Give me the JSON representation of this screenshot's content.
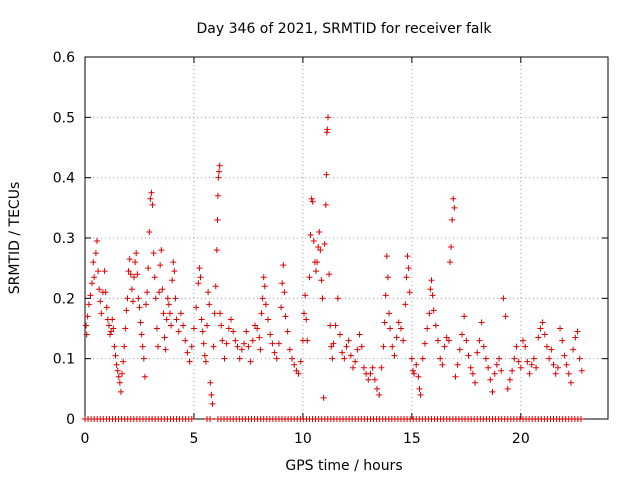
{
  "chart_data": {
    "type": "scatter",
    "title": "Day 346 of 2021, SRMTID for receiver falk",
    "xlabel": "GPS time / hours",
    "ylabel": "SRMTID / TECUs",
    "xlim": [
      0,
      24
    ],
    "ylim": [
      0,
      0.6
    ],
    "xticks": [
      0,
      5,
      10,
      15,
      20
    ],
    "xtick_labels": [
      "0",
      "5",
      "10",
      "15",
      "20"
    ],
    "yticks": [
      0,
      0.1,
      0.2,
      0.3,
      0.4,
      0.5,
      0.6
    ],
    "ytick_labels": [
      "0",
      "0.1",
      "0.2",
      "0.3",
      "0.4",
      "0.5",
      "0.6"
    ],
    "grid": true,
    "marker": "plus",
    "series": [
      {
        "name": "SRMTID",
        "color": "#dd0000",
        "points": [
          [
            0.05,
            0.155
          ],
          [
            0.08,
            0.14
          ],
          [
            0.12,
            0.17
          ],
          [
            0.18,
            0.19
          ],
          [
            0.25,
            0.205
          ],
          [
            0.32,
            0.225
          ],
          [
            0.38,
            0.26
          ],
          [
            0.42,
            0.235
          ],
          [
            0.5,
            0.275
          ],
          [
            0.55,
            0.295
          ],
          [
            0.6,
            0.245
          ],
          [
            0.65,
            0.215
          ],
          [
            0.7,
            0.195
          ],
          [
            0.75,
            0.175
          ],
          [
            0.82,
            0.21
          ],
          [
            0.9,
            0.245
          ],
          [
            0.95,
            0.21
          ],
          [
            1.0,
            0.185
          ],
          [
            1.05,
            0.165
          ],
          [
            1.1,
            0.155
          ],
          [
            1.15,
            0.14
          ],
          [
            1.2,
            0.145
          ],
          [
            1.25,
            0.165
          ],
          [
            1.3,
            0.15
          ],
          [
            1.35,
            0.12
          ],
          [
            1.4,
            0.105
          ],
          [
            1.45,
            0.09
          ],
          [
            1.5,
            0.08
          ],
          [
            1.55,
            0.07
          ],
          [
            1.6,
            0.06
          ],
          [
            1.65,
            0.045
          ],
          [
            1.7,
            0.075
          ],
          [
            1.75,
            0.095
          ],
          [
            1.8,
            0.12
          ],
          [
            1.85,
            0.15
          ],
          [
            1.9,
            0.18
          ],
          [
            1.95,
            0.2
          ],
          [
            2.0,
            0.245
          ],
          [
            2.05,
            0.265
          ],
          [
            2.1,
            0.24
          ],
          [
            2.15,
            0.215
          ],
          [
            2.2,
            0.195
          ],
          [
            2.25,
            0.235
          ],
          [
            2.3,
            0.26
          ],
          [
            2.35,
            0.275
          ],
          [
            2.4,
            0.24
          ],
          [
            2.45,
            0.2
          ],
          [
            2.5,
            0.185
          ],
          [
            2.55,
            0.16
          ],
          [
            2.6,
            0.14
          ],
          [
            2.65,
            0.12
          ],
          [
            2.7,
            0.1
          ],
          [
            2.75,
            0.07
          ],
          [
            2.8,
            0.19
          ],
          [
            2.85,
            0.21
          ],
          [
            2.9,
            0.25
          ],
          [
            2.95,
            0.31
          ],
          [
            3.0,
            0.365
          ],
          [
            3.05,
            0.375
          ],
          [
            3.1,
            0.355
          ],
          [
            3.15,
            0.275
          ],
          [
            3.2,
            0.235
          ],
          [
            3.25,
            0.2
          ],
          [
            3.3,
            0.15
          ],
          [
            3.35,
            0.12
          ],
          [
            3.4,
            0.21
          ],
          [
            3.45,
            0.255
          ],
          [
            3.5,
            0.28
          ],
          [
            3.55,
            0.215
          ],
          [
            3.6,
            0.175
          ],
          [
            3.65,
            0.135
          ],
          [
            3.7,
            0.115
          ],
          [
            3.75,
            0.165
          ],
          [
            3.8,
            0.2
          ],
          [
            3.85,
            0.19
          ],
          [
            3.9,
            0.175
          ],
          [
            3.95,
            0.155
          ],
          [
            4.0,
            0.23
          ],
          [
            4.05,
            0.26
          ],
          [
            4.1,
            0.245
          ],
          [
            4.15,
            0.2
          ],
          [
            4.2,
            0.165
          ],
          [
            4.3,
            0.145
          ],
          [
            4.4,
            0.175
          ],
          [
            4.5,
            0.155
          ],
          [
            4.6,
            0.13
          ],
          [
            4.7,
            0.11
          ],
          [
            4.8,
            0.095
          ],
          [
            4.9,
            0.12
          ],
          [
            5.0,
            0.15
          ],
          [
            5.1,
            0.185
          ],
          [
            5.2,
            0.225
          ],
          [
            5.25,
            0.25
          ],
          [
            5.3,
            0.235
          ],
          [
            5.35,
            0.165
          ],
          [
            5.4,
            0.145
          ],
          [
            5.45,
            0.125
          ],
          [
            5.5,
            0.105
          ],
          [
            5.55,
            0.095
          ],
          [
            5.6,
            0.155
          ],
          [
            5.65,
            0.21
          ],
          [
            5.7,
            0.19
          ],
          [
            5.75,
            0.06
          ],
          [
            5.8,
            0.04
          ],
          [
            5.85,
            0.025
          ],
          [
            5.9,
            0.12
          ],
          [
            5.95,
            0.175
          ],
          [
            6.0,
            0.22
          ],
          [
            6.05,
            0.28
          ],
          [
            6.08,
            0.33
          ],
          [
            6.1,
            0.37
          ],
          [
            6.12,
            0.4
          ],
          [
            6.15,
            0.41
          ],
          [
            6.18,
            0.42
          ],
          [
            6.2,
            0.175
          ],
          [
            6.25,
            0.155
          ],
          [
            6.3,
            0.13
          ],
          [
            6.4,
            0.1
          ],
          [
            6.5,
            0.125
          ],
          [
            6.6,
            0.15
          ],
          [
            6.7,
            0.165
          ],
          [
            6.8,
            0.145
          ],
          [
            6.9,
            0.13
          ],
          [
            7.0,
            0.12
          ],
          [
            7.1,
            0.1
          ],
          [
            7.2,
            0.115
          ],
          [
            7.3,
            0.125
          ],
          [
            7.4,
            0.145
          ],
          [
            7.5,
            0.12
          ],
          [
            7.6,
            0.095
          ],
          [
            7.7,
            0.13
          ],
          [
            7.8,
            0.155
          ],
          [
            7.9,
            0.15
          ],
          [
            8.0,
            0.135
          ],
          [
            8.05,
            0.115
          ],
          [
            8.1,
            0.175
          ],
          [
            8.15,
            0.2
          ],
          [
            8.2,
            0.235
          ],
          [
            8.25,
            0.22
          ],
          [
            8.3,
            0.19
          ],
          [
            8.4,
            0.165
          ],
          [
            8.5,
            0.14
          ],
          [
            8.6,
            0.125
          ],
          [
            8.7,
            0.11
          ],
          [
            8.8,
            0.1
          ],
          [
            8.9,
            0.125
          ],
          [
            9.0,
            0.185
          ],
          [
            9.05,
            0.225
          ],
          [
            9.1,
            0.255
          ],
          [
            9.15,
            0.21
          ],
          [
            9.2,
            0.17
          ],
          [
            9.3,
            0.145
          ],
          [
            9.4,
            0.115
          ],
          [
            9.5,
            0.1
          ],
          [
            9.6,
            0.09
          ],
          [
            9.7,
            0.08
          ],
          [
            9.8,
            0.075
          ],
          [
            9.9,
            0.095
          ],
          [
            10.0,
            0.13
          ],
          [
            10.05,
            0.175
          ],
          [
            10.1,
            0.205
          ],
          [
            10.15,
            0.165
          ],
          [
            10.2,
            0.13
          ],
          [
            10.3,
            0.235
          ],
          [
            10.35,
            0.305
          ],
          [
            10.4,
            0.365
          ],
          [
            10.45,
            0.36
          ],
          [
            10.5,
            0.295
          ],
          [
            10.55,
            0.26
          ],
          [
            10.6,
            0.245
          ],
          [
            10.65,
            0.26
          ],
          [
            10.7,
            0.285
          ],
          [
            10.75,
            0.31
          ],
          [
            10.8,
            0.28
          ],
          [
            10.85,
            0.23
          ],
          [
            10.9,
            0.2
          ],
          [
            10.95,
            0.035
          ],
          [
            11.0,
            0.29
          ],
          [
            11.05,
            0.355
          ],
          [
            11.08,
            0.405
          ],
          [
            11.1,
            0.475
          ],
          [
            11.12,
            0.48
          ],
          [
            11.15,
            0.5
          ],
          [
            11.2,
            0.24
          ],
          [
            11.25,
            0.155
          ],
          [
            11.3,
            0.12
          ],
          [
            11.35,
            0.1
          ],
          [
            11.4,
            0.125
          ],
          [
            11.5,
            0.155
          ],
          [
            11.6,
            0.2
          ],
          [
            11.7,
            0.14
          ],
          [
            11.8,
            0.11
          ],
          [
            11.9,
            0.1
          ],
          [
            12.0,
            0.12
          ],
          [
            12.1,
            0.13
          ],
          [
            12.2,
            0.105
          ],
          [
            12.3,
            0.085
          ],
          [
            12.4,
            0.095
          ],
          [
            12.5,
            0.115
          ],
          [
            12.6,
            0.14
          ],
          [
            12.7,
            0.12
          ],
          [
            12.8,
            0.085
          ],
          [
            12.9,
            0.075
          ],
          [
            13.0,
            0.065
          ],
          [
            13.1,
            0.075
          ],
          [
            13.2,
            0.085
          ],
          [
            13.3,
            0.065
          ],
          [
            13.4,
            0.05
          ],
          [
            13.5,
            0.04
          ],
          [
            13.6,
            0.085
          ],
          [
            13.7,
            0.12
          ],
          [
            13.75,
            0.16
          ],
          [
            13.8,
            0.205
          ],
          [
            13.85,
            0.27
          ],
          [
            13.9,
            0.235
          ],
          [
            13.95,
            0.175
          ],
          [
            14.0,
            0.15
          ],
          [
            14.1,
            0.12
          ],
          [
            14.2,
            0.105
          ],
          [
            14.3,
            0.135
          ],
          [
            14.4,
            0.16
          ],
          [
            14.5,
            0.15
          ],
          [
            14.6,
            0.13
          ],
          [
            14.7,
            0.19
          ],
          [
            14.75,
            0.235
          ],
          [
            14.8,
            0.27
          ],
          [
            14.85,
            0.25
          ],
          [
            14.9,
            0.21
          ],
          [
            15.0,
            0.1
          ],
          [
            15.05,
            0.08
          ],
          [
            15.1,
            0.075
          ],
          [
            15.2,
            0.09
          ],
          [
            15.3,
            0.07
          ],
          [
            15.35,
            0.05
          ],
          [
            15.4,
            0.04
          ],
          [
            15.5,
            0.1
          ],
          [
            15.6,
            0.125
          ],
          [
            15.7,
            0.15
          ],
          [
            15.8,
            0.175
          ],
          [
            15.85,
            0.215
          ],
          [
            15.9,
            0.23
          ],
          [
            15.95,
            0.205
          ],
          [
            16.0,
            0.18
          ],
          [
            16.1,
            0.155
          ],
          [
            16.2,
            0.13
          ],
          [
            16.3,
            0.1
          ],
          [
            16.4,
            0.09
          ],
          [
            16.5,
            0.12
          ],
          [
            16.6,
            0.135
          ],
          [
            16.7,
            0.13
          ],
          [
            16.75,
            0.26
          ],
          [
            16.8,
            0.285
          ],
          [
            16.85,
            0.33
          ],
          [
            16.9,
            0.365
          ],
          [
            16.95,
            0.35
          ],
          [
            17.0,
            0.07
          ],
          [
            17.1,
            0.09
          ],
          [
            17.2,
            0.115
          ],
          [
            17.3,
            0.14
          ],
          [
            17.4,
            0.17
          ],
          [
            17.5,
            0.13
          ],
          [
            17.6,
            0.105
          ],
          [
            17.7,
            0.085
          ],
          [
            17.8,
            0.075
          ],
          [
            17.9,
            0.06
          ],
          [
            18.0,
            0.11
          ],
          [
            18.1,
            0.13
          ],
          [
            18.2,
            0.16
          ],
          [
            18.3,
            0.12
          ],
          [
            18.4,
            0.1
          ],
          [
            18.5,
            0.085
          ],
          [
            18.6,
            0.065
          ],
          [
            18.7,
            0.045
          ],
          [
            18.8,
            0.075
          ],
          [
            18.9,
            0.09
          ],
          [
            19.0,
            0.1
          ],
          [
            19.1,
            0.08
          ],
          [
            19.2,
            0.2
          ],
          [
            19.3,
            0.17
          ],
          [
            19.4,
            0.05
          ],
          [
            19.5,
            0.065
          ],
          [
            19.6,
            0.08
          ],
          [
            19.7,
            0.1
          ],
          [
            19.8,
            0.12
          ],
          [
            19.9,
            0.095
          ],
          [
            20.0,
            0.085
          ],
          [
            20.1,
            0.13
          ],
          [
            20.2,
            0.12
          ],
          [
            20.3,
            0.095
          ],
          [
            20.4,
            0.075
          ],
          [
            20.5,
            0.09
          ],
          [
            20.6,
            0.1
          ],
          [
            20.7,
            0.085
          ],
          [
            20.8,
            0.135
          ],
          [
            20.9,
            0.15
          ],
          [
            21.0,
            0.16
          ],
          [
            21.1,
            0.14
          ],
          [
            21.2,
            0.12
          ],
          [
            21.3,
            0.1
          ],
          [
            21.4,
            0.115
          ],
          [
            21.5,
            0.09
          ],
          [
            21.6,
            0.075
          ],
          [
            21.7,
            0.085
          ],
          [
            21.8,
            0.15
          ],
          [
            21.9,
            0.13
          ],
          [
            22.0,
            0.105
          ],
          [
            22.1,
            0.09
          ],
          [
            22.2,
            0.075
          ],
          [
            22.3,
            0.06
          ],
          [
            22.4,
            0.115
          ],
          [
            22.5,
            0.135
          ],
          [
            22.6,
            0.145
          ],
          [
            22.7,
            0.1
          ],
          [
            22.8,
            0.08
          ]
        ],
        "zero_spans": [
          [
            0.0,
            4.9
          ],
          [
            5.6,
            5.85
          ],
          [
            6.1,
            22.8
          ]
        ],
        "zero_step": 0.14
      }
    ]
  }
}
